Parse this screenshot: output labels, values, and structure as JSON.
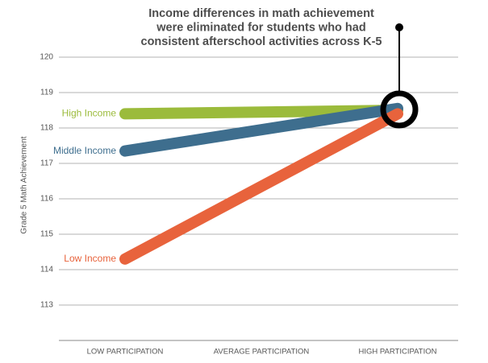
{
  "chart_data": {
    "type": "line",
    "title_lines": [
      "Income differences in math achievement",
      "were eliminated for students who had",
      "consistent afterschool activities across K-5"
    ],
    "y_label": "Grade 5 Math Achievement",
    "categories": [
      "LOW PARTICIPATION",
      "AVERAGE PARTICIPATION",
      "HIGH PARTICIPATION"
    ],
    "series": [
      {
        "name": "High Income",
        "color": "#9bbb3b",
        "values": [
          118.4,
          118.45,
          118.5
        ]
      },
      {
        "name": "Middle Income",
        "color": "#3e6e8e",
        "values": [
          117.35,
          117.95,
          118.55
        ]
      },
      {
        "name": "Low Income",
        "color": "#e8633c",
        "values": [
          114.3,
          116.35,
          118.4
        ]
      }
    ],
    "ylim": [
      112,
      120
    ],
    "yticks": [
      113,
      114,
      115,
      116,
      117,
      118,
      119,
      120
    ],
    "grid": true
  }
}
